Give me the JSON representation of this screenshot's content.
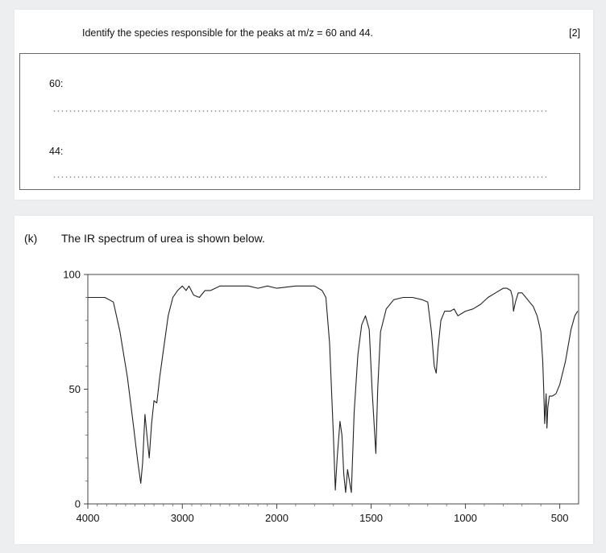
{
  "question": {
    "text": "Identify the species responsible for the peaks at m/z = 60 and 44.",
    "marks": "[2]",
    "answers": [
      {
        "label": "60:"
      },
      {
        "label": "44:"
      }
    ]
  },
  "part": {
    "label": "(k)",
    "text": "The IR spectrum of urea is shown below."
  },
  "chart_data": {
    "type": "line",
    "title": "",
    "xlabel": "",
    "ylabel": "",
    "xlim": [
      4000,
      400
    ],
    "ylim": [
      0,
      100
    ],
    "x_ticks": [
      "4000",
      "3000",
      "2000",
      "1500",
      "1000",
      "500"
    ],
    "y_ticks": [
      "100",
      "50",
      "0"
    ],
    "grid": false,
    "series": [
      {
        "points": [
          [
            4000,
            90
          ],
          [
            3820,
            90
          ],
          [
            3730,
            88
          ],
          [
            3660,
            75
          ],
          [
            3580,
            55
          ],
          [
            3520,
            35
          ],
          [
            3470,
            18
          ],
          [
            3440,
            9
          ],
          [
            3420,
            18
          ],
          [
            3395,
            39
          ],
          [
            3375,
            30
          ],
          [
            3350,
            20
          ],
          [
            3325,
            35
          ],
          [
            3300,
            45
          ],
          [
            3270,
            44
          ],
          [
            3240,
            55
          ],
          [
            3200,
            67
          ],
          [
            3150,
            82
          ],
          [
            3100,
            90
          ],
          [
            3050,
            93
          ],
          [
            3000,
            95
          ],
          [
            2960,
            93
          ],
          [
            2930,
            95
          ],
          [
            2880,
            91
          ],
          [
            2820,
            90
          ],
          [
            2760,
            93
          ],
          [
            2700,
            93
          ],
          [
            2600,
            95
          ],
          [
            2400,
            95
          ],
          [
            2300,
            95
          ],
          [
            2200,
            94
          ],
          [
            2100,
            95
          ],
          [
            2000,
            94
          ],
          [
            1900,
            95
          ],
          [
            1800,
            95
          ],
          [
            1760,
            93
          ],
          [
            1740,
            90
          ],
          [
            1720,
            70
          ],
          [
            1700,
            30
          ],
          [
            1690,
            6
          ],
          [
            1680,
            20
          ],
          [
            1665,
            36
          ],
          [
            1655,
            30
          ],
          [
            1645,
            13
          ],
          [
            1635,
            5
          ],
          [
            1625,
            15
          ],
          [
            1615,
            10
          ],
          [
            1605,
            5
          ],
          [
            1590,
            40
          ],
          [
            1570,
            65
          ],
          [
            1550,
            78
          ],
          [
            1530,
            82
          ],
          [
            1510,
            76
          ],
          [
            1495,
            50
          ],
          [
            1475,
            22
          ],
          [
            1465,
            50
          ],
          [
            1450,
            75
          ],
          [
            1420,
            85
          ],
          [
            1380,
            89
          ],
          [
            1330,
            90
          ],
          [
            1280,
            90
          ],
          [
            1230,
            89
          ],
          [
            1200,
            88
          ],
          [
            1180,
            75
          ],
          [
            1165,
            60
          ],
          [
            1155,
            57
          ],
          [
            1145,
            68
          ],
          [
            1130,
            80
          ],
          [
            1110,
            84
          ],
          [
            1080,
            84
          ],
          [
            1060,
            85
          ],
          [
            1040,
            82
          ],
          [
            1020,
            83
          ],
          [
            1000,
            84
          ],
          [
            960,
            85
          ],
          [
            920,
            87
          ],
          [
            880,
            90
          ],
          [
            840,
            92
          ],
          [
            800,
            94
          ],
          [
            780,
            94
          ],
          [
            760,
            93
          ],
          [
            750,
            90
          ],
          [
            745,
            84
          ],
          [
            735,
            88
          ],
          [
            720,
            92
          ],
          [
            700,
            92
          ],
          [
            680,
            90
          ],
          [
            660,
            88
          ],
          [
            640,
            86
          ],
          [
            620,
            82
          ],
          [
            600,
            75
          ],
          [
            590,
            62
          ],
          [
            585,
            50
          ],
          [
            580,
            35
          ],
          [
            577,
            40
          ],
          [
            572,
            48
          ],
          [
            568,
            33
          ],
          [
            563,
            42
          ],
          [
            555,
            47
          ],
          [
            540,
            47
          ],
          [
            520,
            48
          ],
          [
            500,
            52
          ],
          [
            470,
            62
          ],
          [
            440,
            76
          ],
          [
            420,
            82
          ],
          [
            405,
            84
          ]
        ]
      }
    ]
  }
}
